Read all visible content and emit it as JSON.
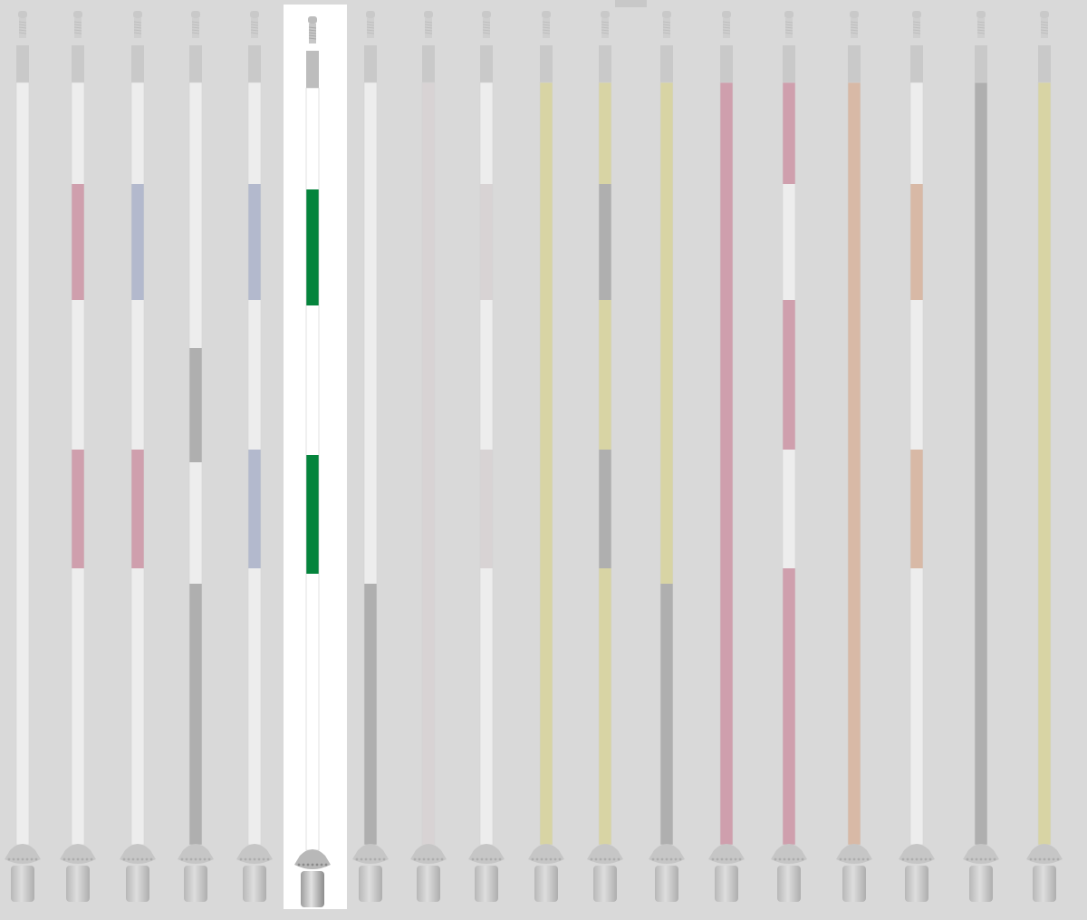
{
  "selected_index": 5,
  "colors": {
    "pink": "#c8708a",
    "blue": "#95a0c4",
    "gray": "#8e8e8e",
    "green": "#04843c",
    "rose": "#d8cfd0",
    "yellow": "#d8d07a",
    "orange": "#d8a07e",
    "white": "#ffffff",
    "ghost": "#e3e3e3"
  },
  "poles": [
    {
      "name": "pole-white",
      "pattern": "solid",
      "colors": [
        "white"
      ]
    },
    {
      "name": "pole-pink-white-banded",
      "pattern": "bands",
      "colors": [
        "white",
        "pink"
      ]
    },
    {
      "name": "pole-blue-pink-banded",
      "pattern": "bands-mixed",
      "colors": [
        "white",
        "blue",
        "pink"
      ]
    },
    {
      "name": "pole-gray-white-banded",
      "pattern": "bands-long",
      "colors": [
        "white",
        "gray"
      ]
    },
    {
      "name": "pole-blue-white-banded",
      "pattern": "bands",
      "colors": [
        "white",
        "blue"
      ]
    },
    {
      "name": "pole-green-white-banded",
      "pattern": "bands",
      "colors": [
        "white",
        "green"
      ]
    },
    {
      "name": "pole-white-gray-bottom",
      "pattern": "two-tone",
      "colors": [
        "white",
        "gray"
      ]
    },
    {
      "name": "pole-rose",
      "pattern": "solid",
      "colors": [
        "rose"
      ]
    },
    {
      "name": "pole-rose-white-banded",
      "pattern": "bands",
      "colors": [
        "white",
        "rose"
      ]
    },
    {
      "name": "pole-yellow",
      "pattern": "solid",
      "colors": [
        "yellow"
      ]
    },
    {
      "name": "pole-yellow-gray-banded",
      "pattern": "bands-full",
      "colors": [
        "yellow",
        "gray"
      ]
    },
    {
      "name": "pole-yellow-gray-bottom",
      "pattern": "two-tone",
      "colors": [
        "yellow",
        "gray"
      ]
    },
    {
      "name": "pole-pink",
      "pattern": "solid",
      "colors": [
        "pink"
      ]
    },
    {
      "name": "pole-pink-white-alternating",
      "pattern": "alternating",
      "colors": [
        "pink",
        "white"
      ]
    },
    {
      "name": "pole-orange",
      "pattern": "solid",
      "colors": [
        "orange"
      ]
    },
    {
      "name": "pole-orange-white-banded",
      "pattern": "bands",
      "colors": [
        "white",
        "orange"
      ]
    },
    {
      "name": "pole-gray",
      "pattern": "solid",
      "colors": [
        "gray"
      ]
    },
    {
      "name": "pole-yellow-light",
      "pattern": "solid",
      "colors": [
        "yellow"
      ]
    }
  ]
}
